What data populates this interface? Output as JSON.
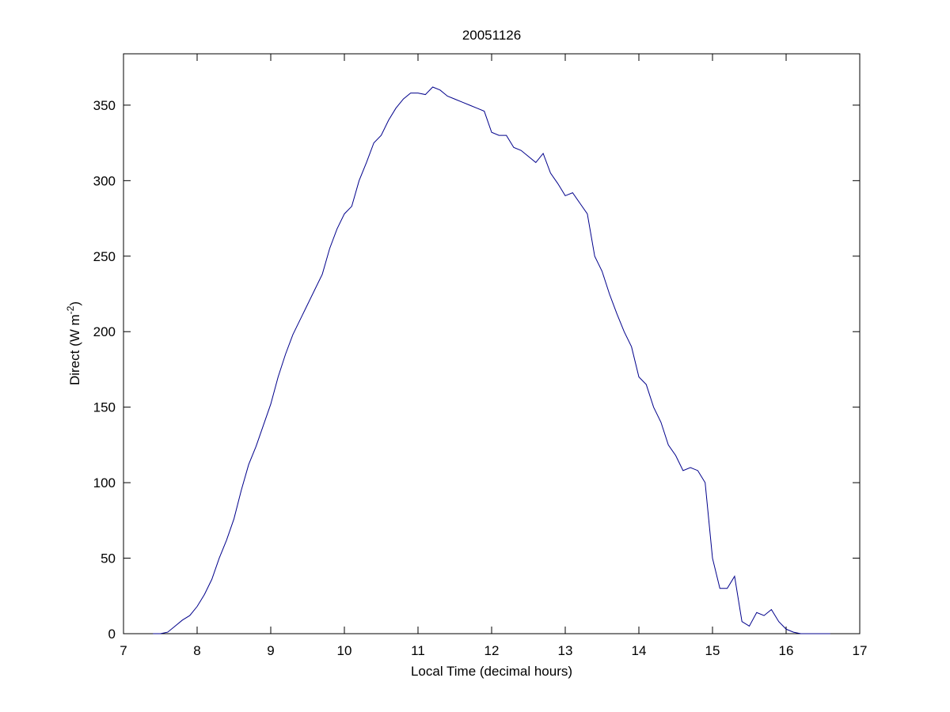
{
  "chart_data": {
    "type": "line",
    "title": "20051126",
    "xlabel": "Local Time (decimal hours)",
    "ylabel": "Direct (W m",
    "ylabel_superscript": "-2",
    "ylabel_end": ")",
    "x": [
      7.4,
      7.5,
      7.6,
      7.7,
      7.8,
      7.9,
      8.0,
      8.1,
      8.2,
      8.3,
      8.4,
      8.5,
      8.6,
      8.7,
      8.8,
      8.9,
      9.0,
      9.1,
      9.2,
      9.3,
      9.4,
      9.5,
      9.6,
      9.7,
      9.8,
      9.9,
      10.0,
      10.1,
      10.2,
      10.3,
      10.4,
      10.5,
      10.6,
      10.7,
      10.8,
      10.9,
      11.0,
      11.1,
      11.2,
      11.3,
      11.4,
      11.5,
      11.6,
      11.7,
      11.8,
      11.9,
      12.0,
      12.1,
      12.2,
      12.3,
      12.4,
      12.5,
      12.6,
      12.7,
      12.8,
      12.9,
      13.0,
      13.1,
      13.2,
      13.3,
      13.4,
      13.5,
      13.6,
      13.7,
      13.8,
      13.9,
      14.0,
      14.1,
      14.2,
      14.3,
      14.4,
      14.5,
      14.6,
      14.7,
      14.8,
      14.9,
      15.0,
      15.1,
      15.2,
      15.3,
      15.4,
      15.5,
      15.6,
      15.7,
      15.8,
      15.9,
      16.0,
      16.1,
      16.2,
      16.3,
      16.4,
      16.5,
      16.6
    ],
    "series": [
      {
        "color": "#00008b",
        "values": [
          0,
          0,
          1,
          5,
          9,
          12,
          18,
          26,
          36,
          50,
          62,
          76,
          95,
          112,
          124,
          138,
          152,
          170,
          185,
          198,
          208,
          218,
          228,
          238,
          255,
          268,
          278,
          283,
          300,
          312,
          325,
          330,
          340,
          348,
          354,
          358,
          358,
          357,
          362,
          360,
          356,
          354,
          352,
          350,
          348,
          346,
          332,
          330,
          330,
          322,
          320,
          316,
          312,
          318,
          305,
          298,
          290,
          292,
          285,
          278,
          250,
          240,
          225,
          212,
          200,
          190,
          170,
          165,
          150,
          140,
          125,
          118,
          108,
          110,
          108,
          100,
          50,
          30,
          30,
          38,
          8,
          5,
          14,
          12,
          16,
          8,
          3,
          1,
          0,
          0,
          0,
          0,
          0
        ]
      }
    ],
    "xlim": [
      7,
      17
    ],
    "xticks": [
      7,
      8,
      9,
      10,
      11,
      12,
      13,
      14,
      15,
      16,
      17
    ],
    "ylim": [
      0,
      384
    ],
    "yticks": [
      0,
      50,
      100,
      150,
      200,
      250,
      300,
      350
    ],
    "grid": false
  }
}
